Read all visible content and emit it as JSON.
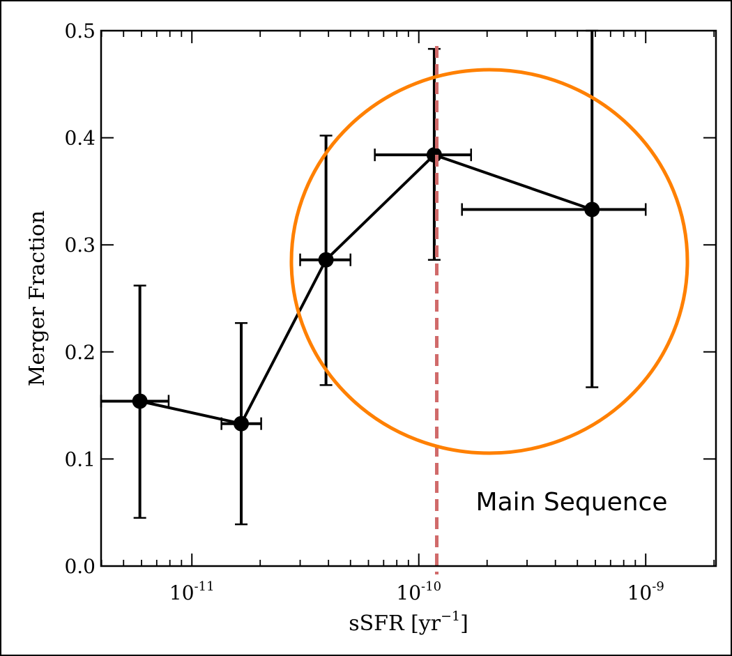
{
  "chart_data": {
    "type": "scatter",
    "xlabel_base": "sSFR [yr",
    "xlabel_exp": "−1",
    "xlabel_tail": "]",
    "ylabel": "Merger Fraction",
    "xscale": "log",
    "xlim": [
      3.98e-12,
      2.04e-09
    ],
    "ylim": [
      0.0,
      0.5
    ],
    "grid": false,
    "yticks": [
      "0.0",
      "0.1",
      "0.2",
      "0.3",
      "0.4",
      "0.5"
    ],
    "xticks": [
      {
        "value": 1e-11,
        "base": "10",
        "exp": "-11"
      },
      {
        "value": 1e-10,
        "base": "10",
        "exp": "-10"
      },
      {
        "value": 1e-09,
        "base": "10",
        "exp": "-9"
      }
    ],
    "points": [
      {
        "x": 5.9e-12,
        "y": 0.154,
        "xerr_low": 3.98e-12,
        "xerr_high": 7.9e-12,
        "yerr_low": 0.045,
        "yerr_high": 0.262
      },
      {
        "x": 1.65e-11,
        "y": 0.133,
        "xerr_low": 1.35e-11,
        "xerr_high": 2.02e-11,
        "yerr_low": 0.039,
        "yerr_high": 0.227
      },
      {
        "x": 3.9e-11,
        "y": 0.286,
        "xerr_low": 3e-11,
        "xerr_high": 5e-11,
        "yerr_low": 0.169,
        "yerr_high": 0.402
      },
      {
        "x": 1.17e-10,
        "y": 0.384,
        "xerr_low": 6.4e-11,
        "xerr_high": 1.7e-10,
        "yerr_low": 0.286,
        "yerr_high": 0.483
      },
      {
        "x": 5.8e-10,
        "y": 0.333,
        "xerr_low": 1.55e-10,
        "xerr_high": 1e-09,
        "yerr_low": 0.167,
        "yerr_high": 0.5
      }
    ],
    "main_sequence_x": 1.2e-10,
    "annotation": "Main Sequence",
    "colors": {
      "data": "#000000",
      "circle": "#ff8000",
      "vline": "#d06a6a"
    }
  }
}
